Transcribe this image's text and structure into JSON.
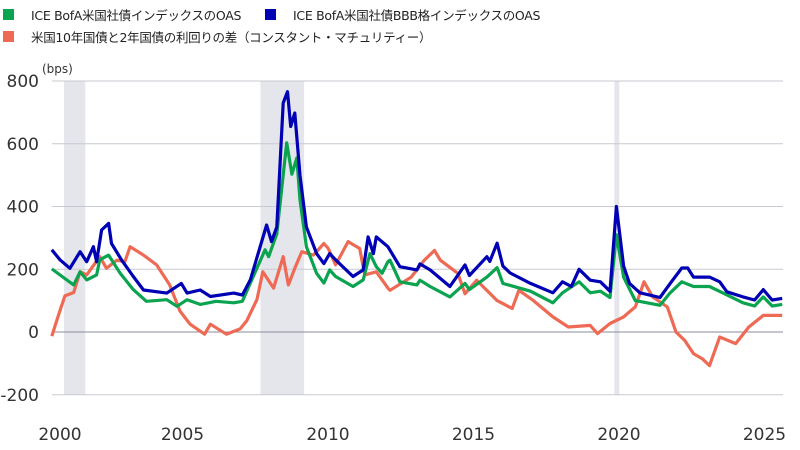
{
  "chart_data": {
    "type": "line",
    "title": "",
    "ylabel": "(bps)",
    "xlabel": "",
    "ylim": [
      -200,
      800
    ],
    "xlim": [
      2000,
      2026
    ],
    "yticks": [
      -200,
      0,
      200,
      400,
      600,
      800
    ],
    "xticks": [
      2000,
      2005,
      2010,
      2015,
      2020,
      2025
    ],
    "grid": true,
    "legend_position": "top-left",
    "recessions": [
      [
        2001.17,
        2001.9
      ],
      [
        2007.92,
        2009.42
      ],
      [
        2020.08,
        2020.25
      ]
    ],
    "series": [
      {
        "name": "ICE BofA米国社債インデックスのOAS",
        "color": "#0aa350",
        "points": [
          [
            2000.75,
            201
          ],
          [
            2001.26,
            166
          ],
          [
            2001.5,
            150
          ],
          [
            2001.72,
            192
          ],
          [
            2001.95,
            166
          ],
          [
            2002.29,
            182
          ],
          [
            2002.4,
            230
          ],
          [
            2002.7,
            245
          ],
          [
            2003.1,
            187
          ],
          [
            2003.55,
            135
          ],
          [
            2004.0,
            98
          ],
          [
            2004.7,
            103
          ],
          [
            2005.05,
            82
          ],
          [
            2005.4,
            103
          ],
          [
            2005.85,
            88
          ],
          [
            2006.4,
            98
          ],
          [
            2007.0,
            93
          ],
          [
            2007.3,
            98
          ],
          [
            2007.57,
            156
          ],
          [
            2008.08,
            262
          ],
          [
            2008.2,
            240
          ],
          [
            2008.48,
            313
          ],
          [
            2008.82,
            603
          ],
          [
            2009.0,
            503
          ],
          [
            2009.17,
            555
          ],
          [
            2009.28,
            421
          ],
          [
            2009.5,
            272
          ],
          [
            2009.85,
            187
          ],
          [
            2010.1,
            156
          ],
          [
            2010.3,
            198
          ],
          [
            2010.5,
            177
          ],
          [
            2011.1,
            145
          ],
          [
            2011.45,
            166
          ],
          [
            2011.68,
            250
          ],
          [
            2011.9,
            208
          ],
          [
            2012.1,
            187
          ],
          [
            2012.3,
            224
          ],
          [
            2012.37,
            229
          ],
          [
            2012.71,
            160
          ],
          [
            2013.3,
            150
          ],
          [
            2013.4,
            165
          ],
          [
            2013.75,
            145
          ],
          [
            2014.43,
            112
          ],
          [
            2014.95,
            155
          ],
          [
            2015.1,
            135
          ],
          [
            2015.7,
            175
          ],
          [
            2016.05,
            205
          ],
          [
            2016.25,
            155
          ],
          [
            2017.2,
            130
          ],
          [
            2017.97,
            93
          ],
          [
            2018.3,
            125
          ],
          [
            2018.87,
            160
          ],
          [
            2019.25,
            125
          ],
          [
            2019.6,
            130
          ],
          [
            2019.93,
            110
          ],
          [
            2020.15,
            310
          ],
          [
            2020.4,
            175
          ],
          [
            2020.8,
            100
          ],
          [
            2021.65,
            85
          ],
          [
            2022.0,
            125
          ],
          [
            2022.4,
            160
          ],
          [
            2022.8,
            145
          ],
          [
            2023.35,
            145
          ],
          [
            2023.8,
            125
          ],
          [
            2024.5,
            93
          ],
          [
            2024.9,
            83
          ],
          [
            2025.2,
            112
          ],
          [
            2025.5,
            83
          ],
          [
            2025.85,
            88
          ]
        ]
      },
      {
        "name": "ICE BofA米国社債BBB格インデックスのOAS",
        "color": "#0000b4",
        "points": [
          [
            2000.75,
            262
          ],
          [
            2001.03,
            230
          ],
          [
            2001.37,
            203
          ],
          [
            2001.72,
            256
          ],
          [
            2001.95,
            224
          ],
          [
            2002.18,
            272
          ],
          [
            2002.29,
            224
          ],
          [
            2002.46,
            325
          ],
          [
            2002.7,
            346
          ],
          [
            2002.8,
            282
          ],
          [
            2003.15,
            229
          ],
          [
            2003.55,
            177
          ],
          [
            2003.9,
            134
          ],
          [
            2004.7,
            124
          ],
          [
            2005.2,
            155
          ],
          [
            2005.4,
            124
          ],
          [
            2005.85,
            134
          ],
          [
            2006.2,
            113
          ],
          [
            2007.0,
            124
          ],
          [
            2007.3,
            118
          ],
          [
            2007.57,
            166
          ],
          [
            2008.13,
            341
          ],
          [
            2008.3,
            288
          ],
          [
            2008.48,
            335
          ],
          [
            2008.7,
            730
          ],
          [
            2008.85,
            766
          ],
          [
            2008.96,
            655
          ],
          [
            2009.1,
            698
          ],
          [
            2009.28,
            499
          ],
          [
            2009.5,
            335
          ],
          [
            2009.85,
            250
          ],
          [
            2010.1,
            218
          ],
          [
            2010.3,
            250
          ],
          [
            2010.5,
            230
          ],
          [
            2011.1,
            177
          ],
          [
            2011.45,
            198
          ],
          [
            2011.62,
            303
          ],
          [
            2011.8,
            250
          ],
          [
            2011.9,
            303
          ],
          [
            2012.3,
            272
          ],
          [
            2012.71,
            208
          ],
          [
            2013.3,
            198
          ],
          [
            2013.4,
            217
          ],
          [
            2013.75,
            198
          ],
          [
            2014.43,
            145
          ],
          [
            2014.95,
            214
          ],
          [
            2015.1,
            180
          ],
          [
            2015.7,
            240
          ],
          [
            2015.8,
            225
          ],
          [
            2016.05,
            283
          ],
          [
            2016.25,
            210
          ],
          [
            2016.5,
            188
          ],
          [
            2017.2,
            155
          ],
          [
            2017.97,
            125
          ],
          [
            2018.3,
            160
          ],
          [
            2018.6,
            145
          ],
          [
            2018.87,
            200
          ],
          [
            2019.25,
            165
          ],
          [
            2019.6,
            160
          ],
          [
            2019.93,
            130
          ],
          [
            2020.15,
            400
          ],
          [
            2020.4,
            210
          ],
          [
            2020.6,
            155
          ],
          [
            2020.96,
            125
          ],
          [
            2021.65,
            110
          ],
          [
            2022.0,
            155
          ],
          [
            2022.4,
            204
          ],
          [
            2022.6,
            204
          ],
          [
            2022.8,
            175
          ],
          [
            2023.1,
            175
          ],
          [
            2023.35,
            175
          ],
          [
            2023.7,
            160
          ],
          [
            2023.95,
            128
          ],
          [
            2024.5,
            112
          ],
          [
            2024.9,
            102
          ],
          [
            2025.2,
            135
          ],
          [
            2025.5,
            102
          ],
          [
            2025.85,
            107
          ]
        ]
      },
      {
        "name": "米国10年国債と2年国債の利回りの差（コンスタント・マチュリティー）",
        "color": "#ee6a55",
        "points": [
          [
            2000.75,
            -13
          ],
          [
            2000.97,
            51
          ],
          [
            2001.2,
            115
          ],
          [
            2001.5,
            126
          ],
          [
            2001.72,
            192
          ],
          [
            2001.95,
            182
          ],
          [
            2002.4,
            240
          ],
          [
            2002.63,
            203
          ],
          [
            2002.98,
            229
          ],
          [
            2003.26,
            224
          ],
          [
            2003.44,
            272
          ],
          [
            2003.9,
            245
          ],
          [
            2004.35,
            214
          ],
          [
            2004.8,
            150
          ],
          [
            2005.15,
            67
          ],
          [
            2005.5,
            25
          ],
          [
            2006.0,
            -7
          ],
          [
            2006.2,
            25
          ],
          [
            2006.75,
            -7
          ],
          [
            2007.22,
            10
          ],
          [
            2007.45,
            36
          ],
          [
            2007.8,
            104
          ],
          [
            2008.0,
            192
          ],
          [
            2008.37,
            140
          ],
          [
            2008.7,
            240
          ],
          [
            2008.88,
            150
          ],
          [
            2009.1,
            203
          ],
          [
            2009.34,
            256
          ],
          [
            2009.74,
            245
          ],
          [
            2010.1,
            282
          ],
          [
            2010.25,
            266
          ],
          [
            2010.5,
            214
          ],
          [
            2010.93,
            288
          ],
          [
            2011.33,
            266
          ],
          [
            2011.5,
            182
          ],
          [
            2011.9,
            192
          ],
          [
            2012.3,
            140
          ],
          [
            2012.37,
            133
          ],
          [
            2013.1,
            175
          ],
          [
            2013.55,
            229
          ],
          [
            2013.9,
            260
          ],
          [
            2014.1,
            229
          ],
          [
            2014.7,
            187
          ],
          [
            2014.95,
            122
          ],
          [
            2015.35,
            165
          ],
          [
            2016.05,
            100
          ],
          [
            2016.57,
            75
          ],
          [
            2016.8,
            133
          ],
          [
            2017.3,
            100
          ],
          [
            2017.97,
            48
          ],
          [
            2018.5,
            16
          ],
          [
            2019.25,
            21
          ],
          [
            2019.5,
            -5
          ],
          [
            2019.93,
            27
          ],
          [
            2020.4,
            48
          ],
          [
            2020.8,
            80
          ],
          [
            2021.1,
            160
          ],
          [
            2021.4,
            112
          ],
          [
            2021.9,
            80
          ],
          [
            2022.2,
            0
          ],
          [
            2022.5,
            -27
          ],
          [
            2022.8,
            -69
          ],
          [
            2023.1,
            -85
          ],
          [
            2023.35,
            -107
          ],
          [
            2023.7,
            -16
          ],
          [
            2024.25,
            -37
          ],
          [
            2024.7,
            16
          ],
          [
            2025.2,
            53
          ],
          [
            2025.85,
            53
          ]
        ]
      }
    ]
  }
}
